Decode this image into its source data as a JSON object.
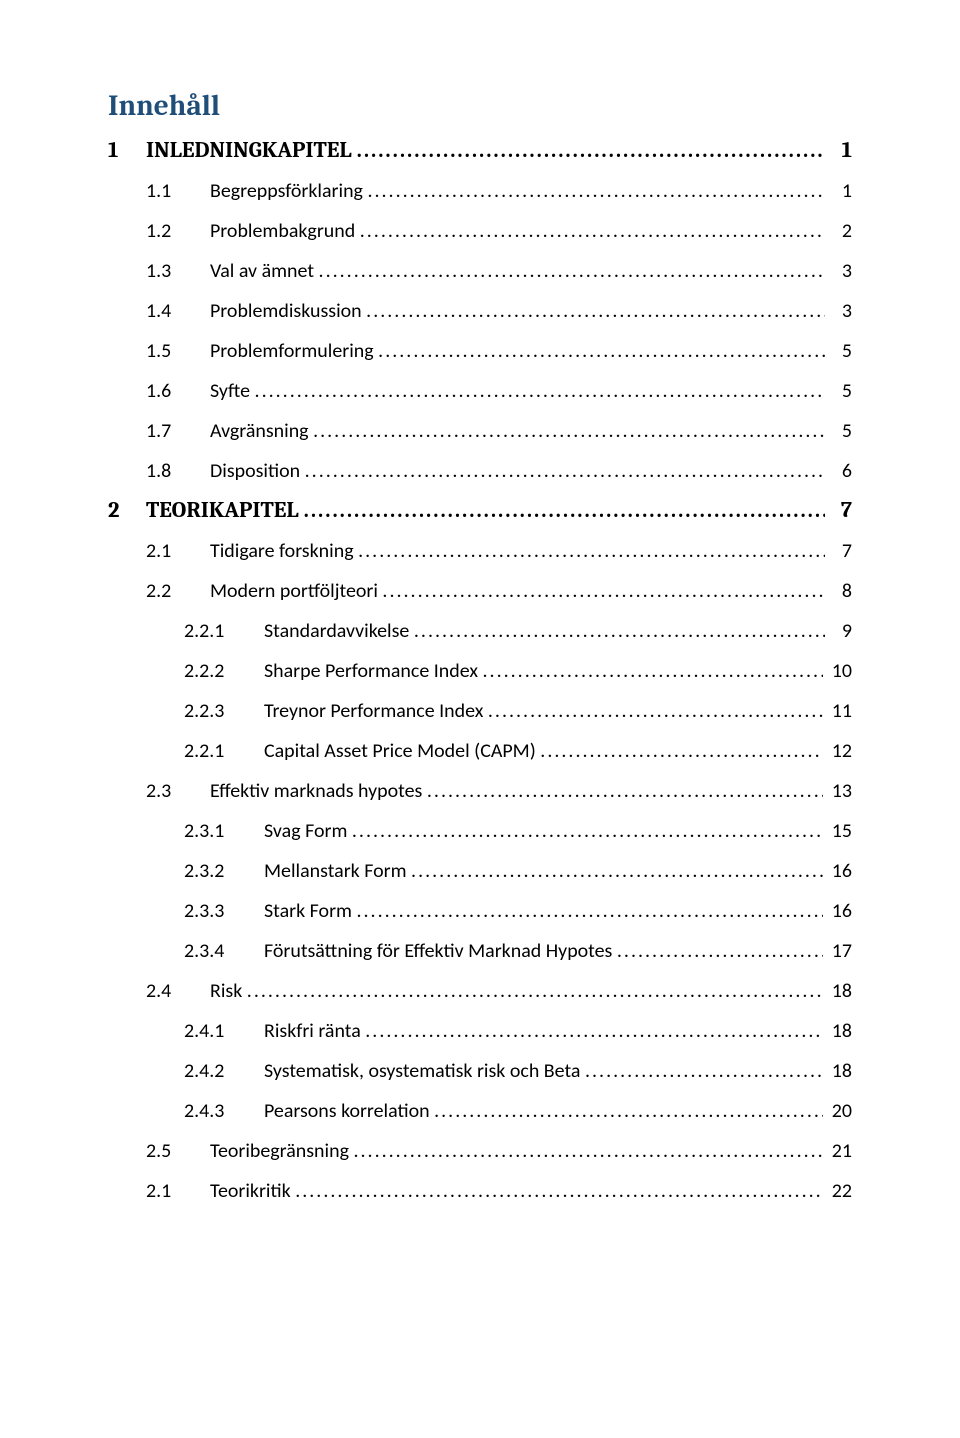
{
  "title": {
    "text": "Innehåll",
    "color": "#1f4e79",
    "fontsize_pt": 22
  },
  "body_fontsize_pt": 15,
  "heading_fontsize_pt": 17,
  "leader_char": ".",
  "entries": [
    {
      "level": 1,
      "num": "1",
      "label": "INLEDNINGKAPITEL",
      "page": "1"
    },
    {
      "level": 2,
      "num": "1.1",
      "label": "Begreppsförklaring",
      "page": "1"
    },
    {
      "level": 2,
      "num": "1.2",
      "label": "Problembakgrund",
      "page": "2"
    },
    {
      "level": 2,
      "num": "1.3",
      "label": "Val av ämnet",
      "page": "3"
    },
    {
      "level": 2,
      "num": "1.4",
      "label": "Problemdiskussion",
      "page": "3"
    },
    {
      "level": 2,
      "num": "1.5",
      "label": "Problemformulering",
      "page": "5"
    },
    {
      "level": 2,
      "num": "1.6",
      "label": "Syfte",
      "page": "5"
    },
    {
      "level": 2,
      "num": "1.7",
      "label": "Avgränsning",
      "page": "5"
    },
    {
      "level": 2,
      "num": "1.8",
      "label": "Disposition",
      "page": "6"
    },
    {
      "level": 1,
      "num": "2",
      "label": "TEORIKAPITEL",
      "page": "7"
    },
    {
      "level": 2,
      "num": "2.1",
      "label": "Tidigare forskning",
      "page": "7"
    },
    {
      "level": 2,
      "num": "2.2",
      "label": "Modern portföljteori",
      "page": "8"
    },
    {
      "level": 3,
      "num": "2.2.1",
      "label": "Standardavvikelse",
      "page": "9"
    },
    {
      "level": 3,
      "num": "2.2.2",
      "label": "Sharpe Performance Index",
      "page": "10"
    },
    {
      "level": 3,
      "num": "2.2.3",
      "label": "Treynor Performance Index",
      "page": "11"
    },
    {
      "level": 3,
      "num": "2.2.1",
      "label": "Capital Asset Price Model (CAPM)",
      "page": "12"
    },
    {
      "level": 2,
      "num": "2.3",
      "label": "Effektiv marknads hypotes",
      "page": "13"
    },
    {
      "level": 3,
      "num": "2.3.1",
      "label": "Svag Form",
      "page": "15"
    },
    {
      "level": 3,
      "num": "2.3.2",
      "label": "Mellanstark Form",
      "page": "16"
    },
    {
      "level": 3,
      "num": "2.3.3",
      "label": "Stark Form",
      "page": "16"
    },
    {
      "level": 3,
      "num": "2.3.4",
      "label": "Förutsättning för Effektiv Marknad Hypotes",
      "page": "17"
    },
    {
      "level": 2,
      "num": "2.4",
      "label": "Risk",
      "page": "18"
    },
    {
      "level": 3,
      "num": "2.4.1",
      "label": "Riskfri ränta",
      "page": "18"
    },
    {
      "level": 3,
      "num": "2.4.2",
      "label": "Systematisk, osystematisk risk och Beta",
      "page": "18"
    },
    {
      "level": 3,
      "num": "2.4.3",
      "label": "Pearsons korrelation",
      "page": "20"
    },
    {
      "level": 2,
      "num": "2.5",
      "label": "Teoribegränsning",
      "page": "21"
    },
    {
      "level": 2,
      "num": "2.1",
      "label": "Teorikritik",
      "page": "22"
    }
  ]
}
